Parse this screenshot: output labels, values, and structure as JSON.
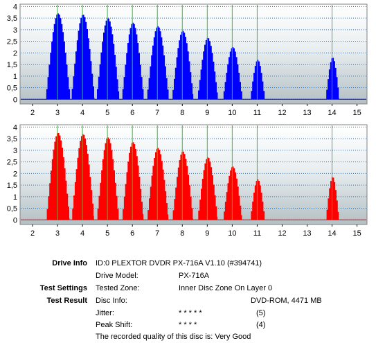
{
  "chart_data": [
    {
      "type": "area",
      "title": "",
      "xlabel": "",
      "ylabel": "",
      "xlim": [
        1.5,
        15.4
      ],
      "ylim": [
        -0.2,
        4.1
      ],
      "x_ticks": [
        "2",
        "3",
        "4",
        "5",
        "6",
        "7",
        "8",
        "9",
        "10",
        "11",
        "12",
        "13",
        "14",
        "15"
      ],
      "y_ticks": [
        "0",
        "0,5",
        "1",
        "1,5",
        "2",
        "2,5",
        "3",
        "3,5",
        "4"
      ],
      "fill_color": "#0000ff",
      "marker_color": "#22cc22",
      "marker_x": [
        3,
        4,
        5,
        6,
        7,
        8,
        9,
        10,
        11,
        14
      ],
      "series": [
        {
          "peaks": [
            {
              "center": 3.0,
              "height": 3.7,
              "width": 0.5
            },
            {
              "center": 4.0,
              "height": 3.65,
              "width": 0.48
            },
            {
              "center": 5.0,
              "height": 3.5,
              "width": 0.47
            },
            {
              "center": 6.0,
              "height": 3.3,
              "width": 0.45
            },
            {
              "center": 7.0,
              "height": 3.15,
              "width": 0.45
            },
            {
              "center": 8.0,
              "height": 2.95,
              "width": 0.44
            },
            {
              "center": 9.0,
              "height": 2.65,
              "width": 0.42
            },
            {
              "center": 10.0,
              "height": 2.25,
              "width": 0.4
            },
            {
              "center": 11.0,
              "height": 1.7,
              "width": 0.3
            },
            {
              "center": 14.0,
              "height": 1.8,
              "width": 0.28
            }
          ]
        }
      ]
    },
    {
      "type": "area",
      "title": "",
      "xlabel": "",
      "ylabel": "",
      "xlim": [
        1.5,
        15.4
      ],
      "ylim": [
        -0.2,
        4.1
      ],
      "x_ticks": [
        "2",
        "3",
        "4",
        "5",
        "6",
        "7",
        "8",
        "9",
        "10",
        "11",
        "12",
        "13",
        "14",
        "15"
      ],
      "y_ticks": [
        "0",
        "0,5",
        "1",
        "1,5",
        "2",
        "2,5",
        "3",
        "3,5",
        "4"
      ],
      "fill_color": "#ff0000",
      "marker_color": "#22cc22",
      "marker_x": [
        3,
        4,
        5,
        6,
        7,
        8,
        9,
        10,
        11,
        14
      ],
      "series": [
        {
          "peaks": [
            {
              "center": 3.0,
              "height": 3.75,
              "width": 0.48
            },
            {
              "center": 4.0,
              "height": 3.7,
              "width": 0.46
            },
            {
              "center": 5.0,
              "height": 3.55,
              "width": 0.45
            },
            {
              "center": 6.0,
              "height": 3.35,
              "width": 0.44
            },
            {
              "center": 7.0,
              "height": 3.1,
              "width": 0.44
            },
            {
              "center": 8.0,
              "height": 2.95,
              "width": 0.43
            },
            {
              "center": 9.0,
              "height": 2.7,
              "width": 0.41
            },
            {
              "center": 10.0,
              "height": 2.3,
              "width": 0.39
            },
            {
              "center": 11.0,
              "height": 1.75,
              "width": 0.3
            },
            {
              "center": 14.0,
              "height": 1.85,
              "width": 0.27
            }
          ]
        }
      ]
    }
  ],
  "info": {
    "drive_info_label": "Drive Info",
    "drive_info_value": "ID:0 PLEXTOR DVDR PX-716A V1.10 (#394741)",
    "drive_model_label": "Drive Model:",
    "drive_model_value": "PX-716A",
    "test_settings_label": "Test Settings",
    "tested_zone_label": "Tested Zone:",
    "tested_zone_value": "Inner Disc Zone On Layer 0",
    "test_result_label": "Test Result",
    "disc_info_label": "Disc Info:",
    "disc_info_value": "DVD-ROM, 4471 MB",
    "jitter_label": "Jitter:",
    "jitter_stars": "* * * * *",
    "jitter_score": "(5)",
    "peak_shift_label": "Peak Shift:",
    "peak_shift_stars": "* * * *",
    "peak_shift_score": "(4)",
    "quality_text": "The recorded quality of this disc is: Very Good"
  }
}
